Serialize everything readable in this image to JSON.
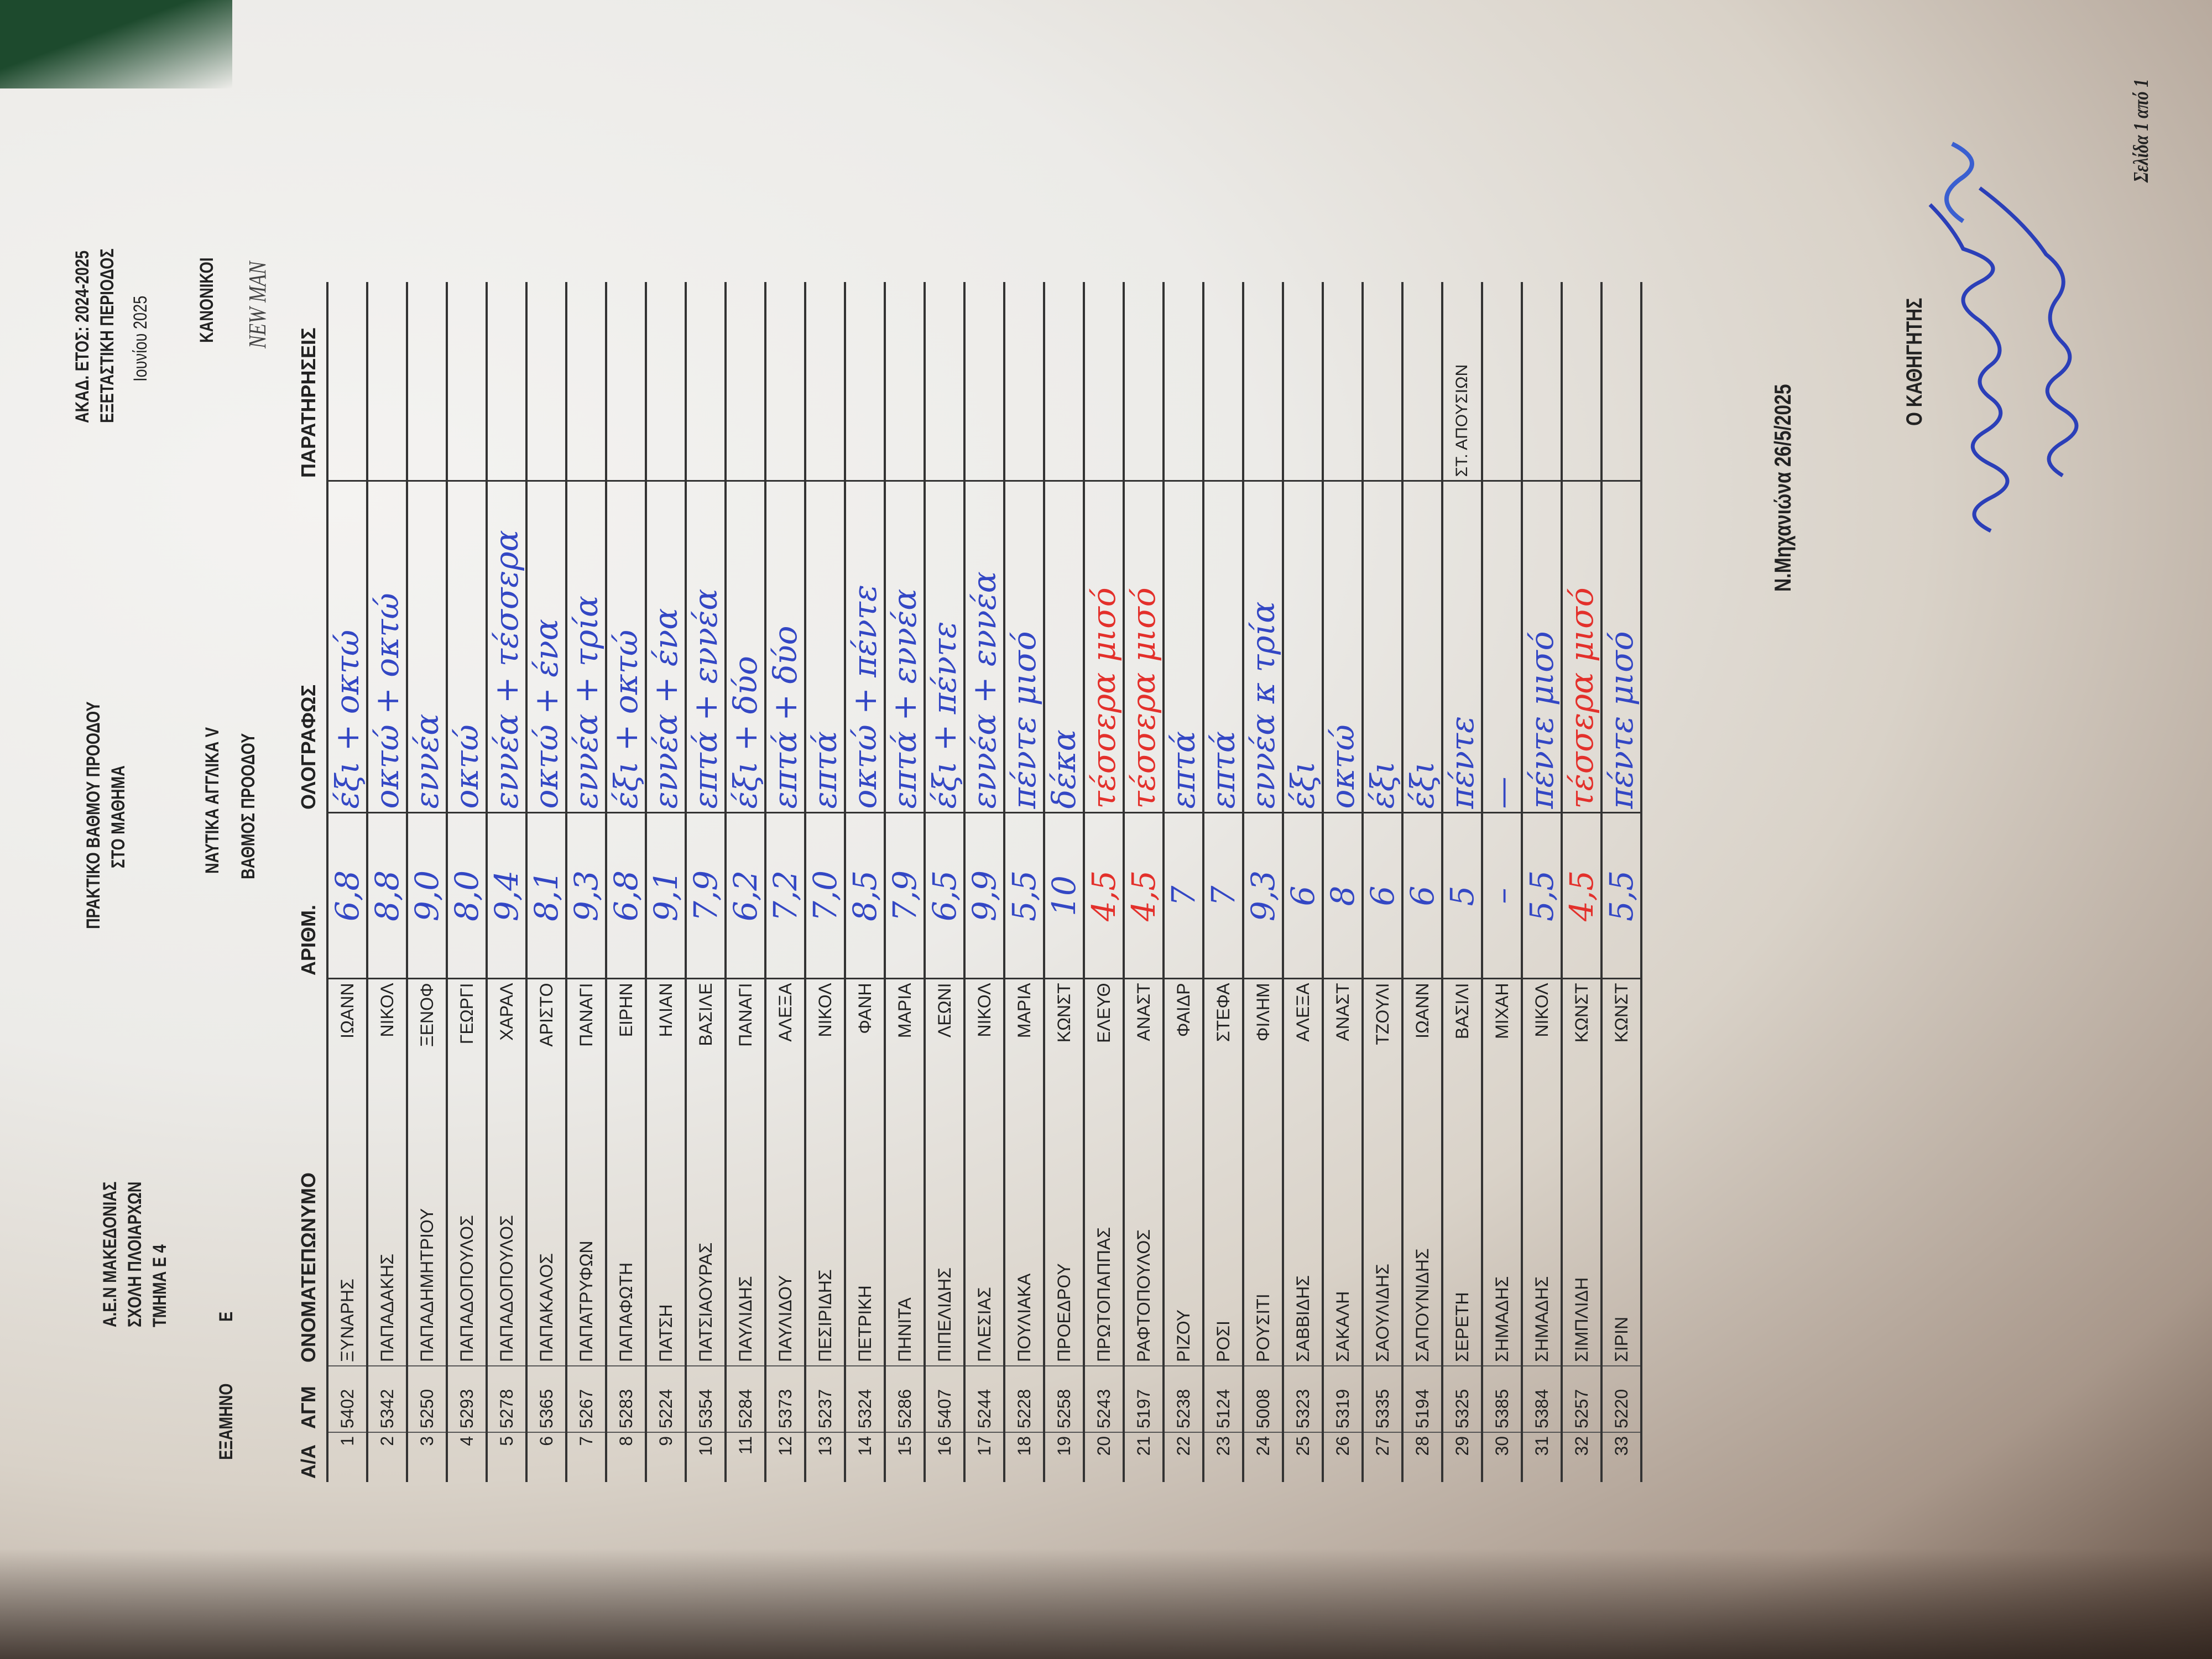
{
  "header": {
    "institution": "Α.Ε.Ν ΜΑΚΕΔΟΝΙΑΣ",
    "school": "ΣΧΟΛΗ ΠΛΟΙΑΡΧΩΝ",
    "department": "ΤΜΗΜΑ  Ε 4",
    "semester_label": "ΕΞΑΜΗΝΟ",
    "semester": "Ε",
    "title": "ΠΡΑΚΤΙΚΟ ΒΑΘΜΟΥ ΠΡΟΟΔΟΥ",
    "subtitle": "ΣΤΟ ΜΑΘΗΜΑ",
    "course": "ΝΑΥΤΙΚΑ  ΑΓΓΛΙΚΑ V",
    "grade_type": "ΒΑΘΜΟΣ ΠΡΟΟΔΟΥ",
    "academic_year": "ΑΚΑΔ. ΕΤΟΣ:  2024-2025",
    "exam_period": "ΕΞΕΤΑΣΤΙΚΗ ΠΕΡΙΟΔΟΣ",
    "month": "Ιουνίου  2025",
    "category": "ΚΑΝΟΝΙΚΟΙ",
    "textbook": "NEW MAN"
  },
  "columns": [
    "Α/Α",
    "ΑΓΜ",
    "ΟΝΟΜΑΤΕΠΩΝΥΜΟ",
    "",
    "ΑΡΙΘΜ.",
    "ΟΛΟΓΡΑΦΩΣ",
    "ΠΑΡΑΤΗΡΗΣΕΙΣ"
  ],
  "rows": [
    {
      "aa": "1",
      "agm": "5402",
      "surname": "ΞΥΝΑΡΗΣ",
      "name": "ΙΩΑΝΝ",
      "grade": "6,8",
      "words": "έξι + οκτώ"
    },
    {
      "aa": "2",
      "agm": "5342",
      "surname": "ΠΑΠΑΔΑΚΗΣ",
      "name": "ΝΙΚΟΛ",
      "grade": "8,8",
      "words": "οκτώ + οκτώ"
    },
    {
      "aa": "3",
      "agm": "5250",
      "surname": "ΠΑΠΑΔΗΜΗΤΡΙΟΥ",
      "name": "ΞΕΝΟΦ",
      "grade": "9,0",
      "words": "εννέα"
    },
    {
      "aa": "4",
      "agm": "5293",
      "surname": "ΠΑΠΑΔΟΠΟΥΛΟΣ",
      "name": "ΓΕΩΡΓΙ",
      "grade": "8,0",
      "words": "οκτώ"
    },
    {
      "aa": "5",
      "agm": "5278",
      "surname": "ΠΑΠΑΔΟΠΟΥΛΟΣ",
      "name": "ΧΑΡΑΛ",
      "grade": "9,4",
      "words": "εννέα + τέσσερα"
    },
    {
      "aa": "6",
      "agm": "5365",
      "surname": "ΠΑΠΑΚΑΛΟΣ",
      "name": "ΑΡΙΣΤΟ",
      "grade": "8,1",
      "words": "οκτώ + ένα"
    },
    {
      "aa": "7",
      "agm": "5267",
      "surname": "ΠΑΠΑΤΡΥΦΩΝ",
      "name": "ΠΑΝΑΓΙ",
      "grade": "9,3",
      "words": "εννέα + τρία"
    },
    {
      "aa": "8",
      "agm": "5283",
      "surname": "ΠΑΠΑΦΩΤΗ",
      "name": "ΕΙΡΗΝ",
      "grade": "6,8",
      "words": "έξι + οκτώ"
    },
    {
      "aa": "9",
      "agm": "5224",
      "surname": "ΠΑΤΣΗ",
      "name": "ΗΛΙΑΝ",
      "grade": "9,1",
      "words": "εννέα + ένα"
    },
    {
      "aa": "10",
      "agm": "5354",
      "surname": "ΠΑΤΣΙΑΟΥΡΑΣ",
      "name": "ΒΑΣΙΛΕ",
      "grade": "7,9",
      "words": "επτά + εννέα"
    },
    {
      "aa": "11",
      "agm": "5284",
      "surname": "ΠΑΥΛΙΔΗΣ",
      "name": "ΠΑΝΑΓΙ",
      "grade": "6,2",
      "words": "έξι + δύο"
    },
    {
      "aa": "12",
      "agm": "5373",
      "surname": "ΠΑΥΛΙΔΟΥ",
      "name": "ΑΛΕΞΑ",
      "grade": "7,2",
      "words": "επτά + δύο"
    },
    {
      "aa": "13",
      "agm": "5237",
      "surname": "ΠΕΣΙΡΙΔΗΣ",
      "name": "ΝΙΚΟΛ",
      "grade": "7,0",
      "words": "επτά"
    },
    {
      "aa": "14",
      "agm": "5324",
      "surname": "ΠΕΤΡΙΚΗ",
      "name": "ΦΑΝΗ",
      "grade": "8,5",
      "words": "οκτώ + πέντε"
    },
    {
      "aa": "15",
      "agm": "5286",
      "surname": "ΠΗΝΙΤΑ",
      "name": "ΜΑΡΙΑ",
      "grade": "7,9",
      "words": "επτά + εννέα"
    },
    {
      "aa": "16",
      "agm": "5407",
      "surname": "ΠΙΠΕΛΙΔΗΣ",
      "name": "ΛΕΩΝΙ",
      "grade": "6,5",
      "words": "έξι + πέντε"
    },
    {
      "aa": "17",
      "agm": "5244",
      "surname": "ΠΛΕΣΙΑΣ",
      "name": "ΝΙΚΟΛ",
      "grade": "9,9",
      "words": "εννέα + εννέα"
    },
    {
      "aa": "18",
      "agm": "5228",
      "surname": "ΠΟΥΛΙΑΚΑ",
      "name": "ΜΑΡΙΑ",
      "grade": "5,5",
      "words": "πέντε μισό"
    },
    {
      "aa": "19",
      "agm": "5258",
      "surname": "ΠΡΟΕΔΡΟΥ",
      "name": "ΚΩΝΣΤ",
      "grade": "10",
      "words": "δέκα"
    },
    {
      "aa": "20",
      "agm": "5243",
      "surname": "ΠΡΩΤΟΠΑΠΠΑΣ",
      "name": "ΕΛΕΥΘ",
      "grade": "4,5",
      "words": "τέσσερα μισό",
      "ink": "red"
    },
    {
      "aa": "21",
      "agm": "5197",
      "surname": "ΡΑΦΤΟΠΟΥΛΟΣ",
      "name": "ΑΝΑΣΤ",
      "grade": "4,5",
      "words": "τέσσερα μισό",
      "ink": "red"
    },
    {
      "aa": "22",
      "agm": "5238",
      "surname": "ΡΙΖΟΥ",
      "name": "ΦΑΙΔΡ",
      "grade": "7",
      "words": "επτά"
    },
    {
      "aa": "23",
      "agm": "5124",
      "surname": "ΡΟΣΙ",
      "name": "ΣΤΕΦΑ",
      "grade": "7",
      "words": "επτά"
    },
    {
      "aa": "24",
      "agm": "5008",
      "surname": "ΡΟΥΣΙΤΙ",
      "name": "ΦΙΛΗΜ",
      "grade": "9,3",
      "words": "εννέα κ τρία"
    },
    {
      "aa": "25",
      "agm": "5323",
      "surname": "ΣΑΒΒΙΔΗΣ",
      "name": "ΑΛΕΞΑ",
      "grade": "6",
      "words": "έξι"
    },
    {
      "aa": "26",
      "agm": "5319",
      "surname": "ΣΑΚΑΛΗ",
      "name": "ΑΝΑΣΤ",
      "grade": "8",
      "words": "οκτώ"
    },
    {
      "aa": "27",
      "agm": "5335",
      "surname": "ΣΑΟΥΛΙΔΗΣ",
      "name": "ΤΖΟΥΛΙ",
      "grade": "6",
      "words": "έξι"
    },
    {
      "aa": "28",
      "agm": "5194",
      "surname": "ΣΑΠΟΥΝΙΔΗΣ",
      "name": "ΙΩΑΝΝ",
      "grade": "6",
      "words": "έξι"
    },
    {
      "aa": "29",
      "agm": "5325",
      "surname": "ΣΕΡΕΤΗ",
      "name": "ΒΑΣΙΛΙ",
      "grade": "5",
      "words": "πέντε",
      "remarks": "ΣΤ. ΑΠΟΥΣΙΩΝ"
    },
    {
      "aa": "30",
      "agm": "5385",
      "surname": "ΣΗΜΑΔΗΣ",
      "name": "ΜΙΧΑΗ",
      "grade": "–",
      "words": "—"
    },
    {
      "aa": "31",
      "agm": "5384",
      "surname": "ΣΗΜΑΔΗΣ",
      "name": "ΝΙΚΟΛ",
      "grade": "5,5",
      "words": "πέντε μισό"
    },
    {
      "aa": "32",
      "agm": "5257",
      "surname": "ΣΙΜΠΛΙΔΗ",
      "name": "ΚΩΝΣΤ",
      "grade": "4,5",
      "words": "τέσσερα μισό",
      "ink": "red"
    },
    {
      "aa": "33",
      "agm": "5220",
      "surname": "ΣΙΡΙΝ",
      "name": "ΚΩΝΣΤ",
      "grade": "5,5",
      "words": "πέντε μισό"
    }
  ],
  "footer": {
    "place_date": "Ν.Μηχανιώνα  26/5/2025",
    "teacher_label": "Ο ΚΑΘΗΓΗΤΗΣ",
    "page": "Σελίδα 1 από 1"
  },
  "colors": {
    "ink_blue": "#3347c4",
    "ink_red": "#e3302b",
    "paper": "#f1f0ed",
    "background_green": "#1d4a2d"
  }
}
